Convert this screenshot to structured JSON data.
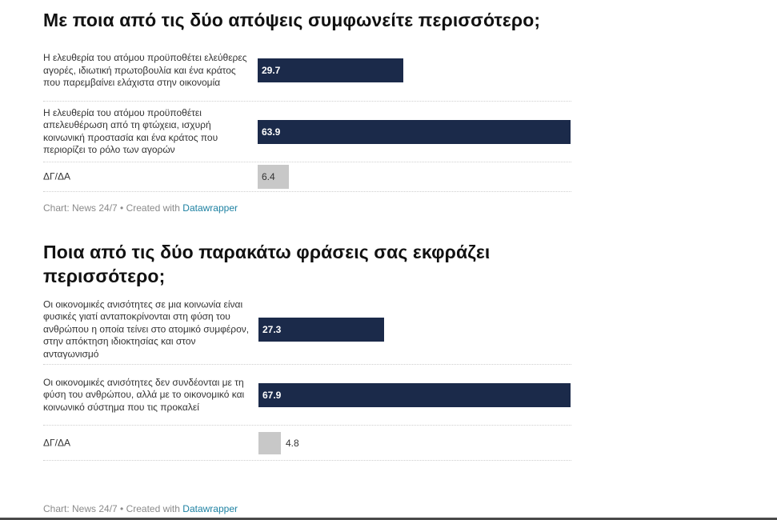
{
  "colors": {
    "main_bar": "#1b2a4a",
    "other_bar": "#c8c8c8"
  },
  "chart_data": [
    {
      "type": "bar",
      "orientation": "horizontal",
      "title": "Με ποια από τις δύο απόψεις συμφωνείτε περισσότερο;",
      "categories": [
        "Η ελευθερία του ατόμου προϋποθέτει ελεύθερες αγορές, ιδιωτική πρωτοβουλία και ένα κράτος που παρεμβαίνει ελάχιστα στην οικονομία",
        "Η ελευθερία του ατόμου προϋποθέτει απελευθέρωση από τη φτώχεια, ισχυρή κοινωνική προστασία και ένα κράτος που περιορίζει το ρόλο των αγορών",
        "ΔΓ/ΔΑ"
      ],
      "values": [
        29.7,
        63.9,
        6.4
      ],
      "value_labels": [
        "29.7",
        "63.9",
        "6.4"
      ],
      "xlim": [
        0,
        63.9
      ],
      "footer_source": "Chart: News 24/7 • Created with ",
      "footer_link": "Datawrapper"
    },
    {
      "type": "bar",
      "orientation": "horizontal",
      "title": "Ποια από τις δύο παρακάτω φράσεις σας εκφράζει περισσότερο;",
      "categories": [
        "Οι οικονομικές ανισότητες σε μια κοινωνία είναι φυσικές γιατί ανταποκρίνονται στη φύση του ανθρώπου η οποία τείνει στο ατομικό συμφέρον, στην απόκτηση ιδιοκτησίας και στον ανταγωνισμό",
        "Οι οικονομικές ανισότητες δεν συνδέονται με τη φύση του ανθρώπου, αλλά με το οικονομικό και κοινωνικό σύστημα που τις προκαλεί",
        "ΔΓ/ΔΑ"
      ],
      "values": [
        27.3,
        67.9,
        4.8
      ],
      "value_labels": [
        "27.3",
        "67.9",
        "4.8"
      ],
      "xlim": [
        0,
        67.9
      ],
      "footer_source": "Chart: News 24/7 • Created with ",
      "footer_link": "Datawrapper"
    }
  ]
}
